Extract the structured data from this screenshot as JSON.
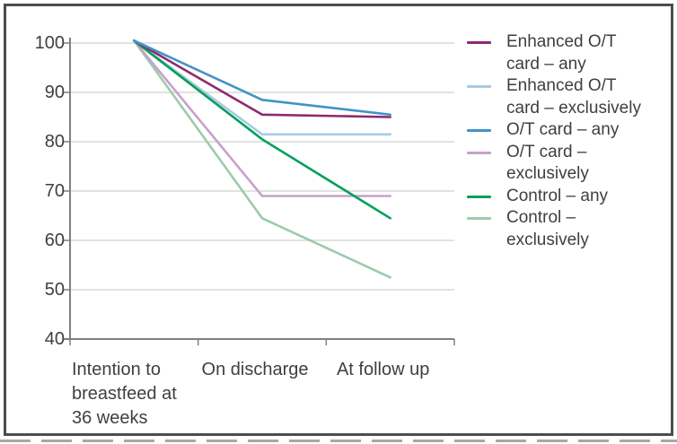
{
  "figure": {
    "description": "Line chart of breastfeeding rates over three time points for six trial groups",
    "background_color": "#ffffff",
    "border_color": "#4d4d4d",
    "text_color": "#3f3f3f",
    "axis_color": "#7f7f7f",
    "gridline_color": "#d9d9d9"
  },
  "chart_data": {
    "type": "line",
    "title": "",
    "xlabel": "",
    "ylabel": "",
    "categories": [
      "Intention to breastfeed at 36 weeks",
      "On discharge",
      "At follow up"
    ],
    "category_label_lines": [
      [
        "Intention to",
        "breastfeed at",
        "36 weeks"
      ],
      [
        "On discharge"
      ],
      [
        "At follow up"
      ]
    ],
    "y_ticks": [
      100,
      90,
      80,
      70,
      60,
      50,
      40
    ],
    "ylim": [
      40,
      100
    ],
    "grid": true,
    "legend_position": "right",
    "series": [
      {
        "name": "Enhanced O/T card – any",
        "legend_lines": [
          "Enhanced O/T",
          "card – any"
        ],
        "color": "#8e2a6e",
        "values": [
          100.5,
          85.5,
          85
        ]
      },
      {
        "name": "Enhanced O/T card – exclusively",
        "legend_lines": [
          "Enhanced O/T",
          "card – exclusively"
        ],
        "color": "#a9cbe2",
        "values": [
          100.5,
          81.5,
          81.5
        ]
      },
      {
        "name": "O/T card – any",
        "legend_lines": [
          "O/T card – any"
        ],
        "color": "#4293c6",
        "values": [
          100.5,
          88.5,
          85.5
        ]
      },
      {
        "name": "O/T card – exclusively",
        "legend_lines": [
          "O/T card –",
          "exclusively"
        ],
        "color": "#c7a0cb",
        "values": [
          100.5,
          69,
          69
        ]
      },
      {
        "name": "Control – any",
        "legend_lines": [
          "Control – any"
        ],
        "color": "#00a05a",
        "values": [
          100.5,
          80.5,
          64.5
        ]
      },
      {
        "name": "Control – exclusively",
        "legend_lines": [
          "Control –",
          "exclusively"
        ],
        "color": "#9dcbab",
        "values": [
          100.5,
          64.5,
          52.5
        ]
      }
    ]
  }
}
